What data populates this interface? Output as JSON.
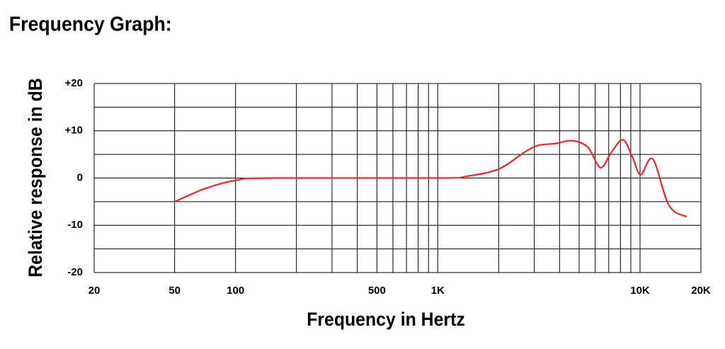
{
  "chart_data": {
    "type": "line",
    "title": "Frequency Graph:",
    "x_label": "Frequency in Hertz",
    "y_label": "Relative response in dB",
    "x_scale": "log",
    "xlim": [
      20,
      20000
    ],
    "xticks": [
      20,
      50,
      100,
      500,
      {
        "value": 1000,
        "label": "1K"
      },
      {
        "value": 10000,
        "label": "10K"
      },
      {
        "value": 20000,
        "label": "20K"
      }
    ],
    "x_minor_ticks": [
      200,
      300,
      400,
      600,
      700,
      800,
      900,
      2000,
      3000,
      4000,
      5000,
      6000,
      7000,
      8000,
      9000
    ],
    "ylim": [
      -20,
      20
    ],
    "yticks": [
      {
        "value": 20,
        "label": "+20"
      },
      {
        "value": 10,
        "label": "+10"
      },
      0,
      -10,
      -20
    ],
    "y_minor_ticks": [
      -15,
      -5,
      5,
      15
    ],
    "grid": true,
    "series": [
      {
        "color": "#e8262a",
        "x": [
          50,
          71,
          100,
          147,
          1000,
          1400,
          2000,
          2670,
          3130,
          3820,
          4580,
          5500,
          6370,
          7200,
          8240,
          9200,
          10070,
          11560,
          13900,
          17000
        ],
        "values": [
          -5,
          -2.2,
          -0.5,
          0,
          0,
          0.4,
          1.9,
          5.4,
          6.9,
          7.3,
          7.9,
          6.6,
          2.2,
          5.4,
          8.1,
          4.3,
          0.7,
          4,
          -5.8,
          -8.2
        ]
      }
    ]
  }
}
